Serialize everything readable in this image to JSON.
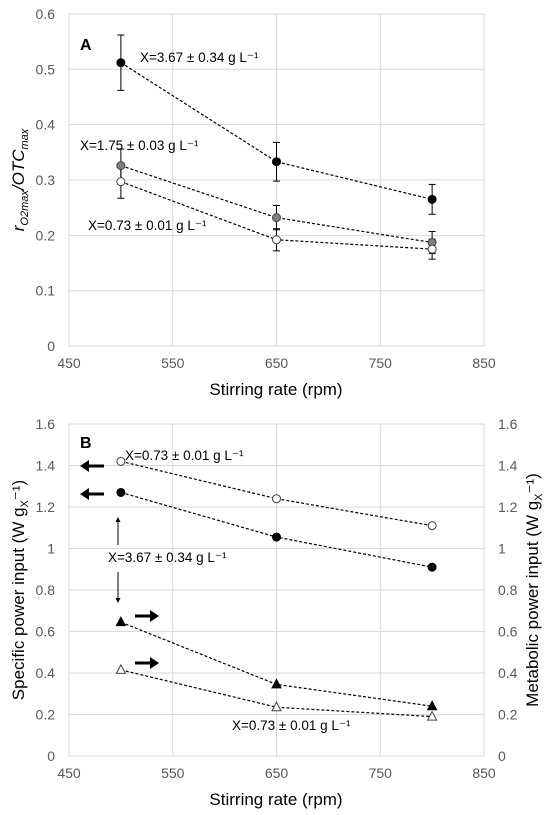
{
  "chart_data": [
    {
      "type": "scatter",
      "panel": "A",
      "xlabel": "Stirring rate (rpm)",
      "ylabel": {
        "base": "r",
        "sub": "O2max",
        "rest": "/OTC",
        "sub2": "max"
      },
      "xlim": [
        450,
        850
      ],
      "ylim": [
        0,
        0.6
      ],
      "xticks": [
        "450",
        "550",
        "650",
        "750",
        "850"
      ],
      "yticks": [
        "0",
        "0.1",
        "0.2",
        "0.3",
        "0.4",
        "0.5",
        "0.6"
      ],
      "grid": true,
      "series": [
        {
          "marker": "filled-circle",
          "color": "#000000",
          "x": [
            500,
            650,
            800
          ],
          "y": [
            0.512,
            0.333,
            0.265
          ],
          "err": [
            0.05,
            0.035,
            0.027
          ]
        },
        {
          "marker": "grey-circle",
          "color": "#7f7f7f",
          "x": [
            500,
            650,
            800
          ],
          "y": [
            0.326,
            0.232,
            0.187
          ],
          "err": [
            0.03,
            0.022,
            0.02
          ]
        },
        {
          "marker": "open-circle",
          "color": "#ffffff",
          "x": [
            500,
            650,
            800
          ],
          "y": [
            0.297,
            0.192,
            0.175
          ],
          "err": [
            0.03,
            0.02,
            0.018
          ]
        }
      ],
      "annotations": [
        {
          "text": "X=3.67 ± 0.34 g L⁻¹"
        },
        {
          "text": "X=1.75 ± 0.03 g L⁻¹"
        },
        {
          "text": "X=0.73 ± 0.01 g L⁻¹"
        }
      ]
    },
    {
      "type": "scatter",
      "panel": "B",
      "xlabel": "Stirring rate (rpm)",
      "ylabel_left": {
        "base": "Specific power input (W g",
        "sub": "X",
        "rest": "⁻¹)"
      },
      "ylabel_right": {
        "base": "Metabolic power input (W g",
        "sub": "X",
        "rest": "⁻¹)"
      },
      "xlim": [
        450,
        850
      ],
      "ylim": [
        0,
        1.6
      ],
      "xticks": [
        "450",
        "550",
        "650",
        "750",
        "850"
      ],
      "yticks": [
        "0",
        "0.2",
        "0.4",
        "0.6",
        "0.8",
        "1",
        "1.2",
        "1.4",
        "1.6"
      ],
      "grid": true,
      "series": [
        {
          "marker": "open-circle",
          "axis": "left",
          "x": [
            500,
            650,
            800
          ],
          "y": [
            1.42,
            1.24,
            1.11
          ]
        },
        {
          "marker": "filled-circle",
          "axis": "left",
          "x": [
            500,
            650,
            800
          ],
          "y": [
            1.27,
            1.055,
            0.91
          ]
        },
        {
          "marker": "filled-triangle",
          "axis": "right",
          "x": [
            500,
            650,
            800
          ],
          "y": [
            0.645,
            0.345,
            0.24
          ]
        },
        {
          "marker": "open-triangle",
          "axis": "right",
          "x": [
            500,
            650,
            800
          ],
          "y": [
            0.415,
            0.235,
            0.19
          ]
        }
      ],
      "annotations": [
        {
          "text": "X=0.73 ± 0.01 g L⁻¹"
        },
        {
          "text": "X=3.67 ± 0.34 g L⁻¹"
        },
        {
          "text": "X=0.73 ± 0.01 g L⁻¹"
        }
      ]
    }
  ]
}
